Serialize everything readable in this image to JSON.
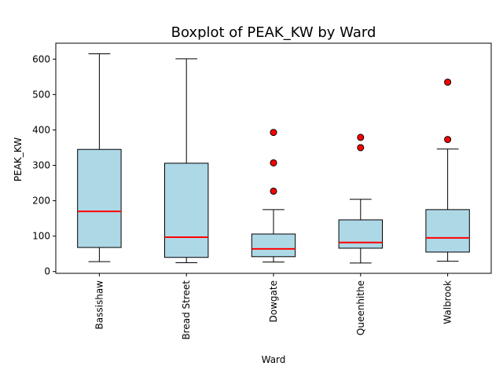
{
  "chart_data": {
    "type": "boxplot",
    "title": "Boxplot of PEAK_KW by Ward",
    "xlabel": "Ward",
    "ylabel": "PEAK_KW",
    "ylim": [
      -5,
      645
    ],
    "yticks": [
      0,
      100,
      200,
      300,
      400,
      500,
      600
    ],
    "categories": [
      "Bassishaw",
      "Bread Street",
      "Dowgate",
      "Queenhithe",
      "Walbrook"
    ],
    "boxes": [
      {
        "whisker_low": 28,
        "q1": 68,
        "median": 170,
        "q3": 345,
        "whisker_high": 615,
        "outliers": []
      },
      {
        "whisker_low": 25,
        "q1": 40,
        "median": 97,
        "q3": 306,
        "whisker_high": 601,
        "outliers": []
      },
      {
        "whisker_low": 27,
        "q1": 42,
        "median": 64,
        "q3": 106,
        "whisker_high": 175,
        "outliers": [
          227,
          307,
          393
        ]
      },
      {
        "whisker_low": 24,
        "q1": 66,
        "median": 82,
        "q3": 146,
        "whisker_high": 204,
        "outliers": [
          350,
          379
        ]
      },
      {
        "whisker_low": 29,
        "q1": 55,
        "median": 95,
        "q3": 175,
        "whisker_high": 346,
        "outliers": [
          373,
          535
        ]
      }
    ],
    "colors": {
      "box_fill": "#add8e6",
      "median": "#ff0000",
      "outlier": "#ff0000",
      "line": "#000000"
    },
    "grid": false
  }
}
